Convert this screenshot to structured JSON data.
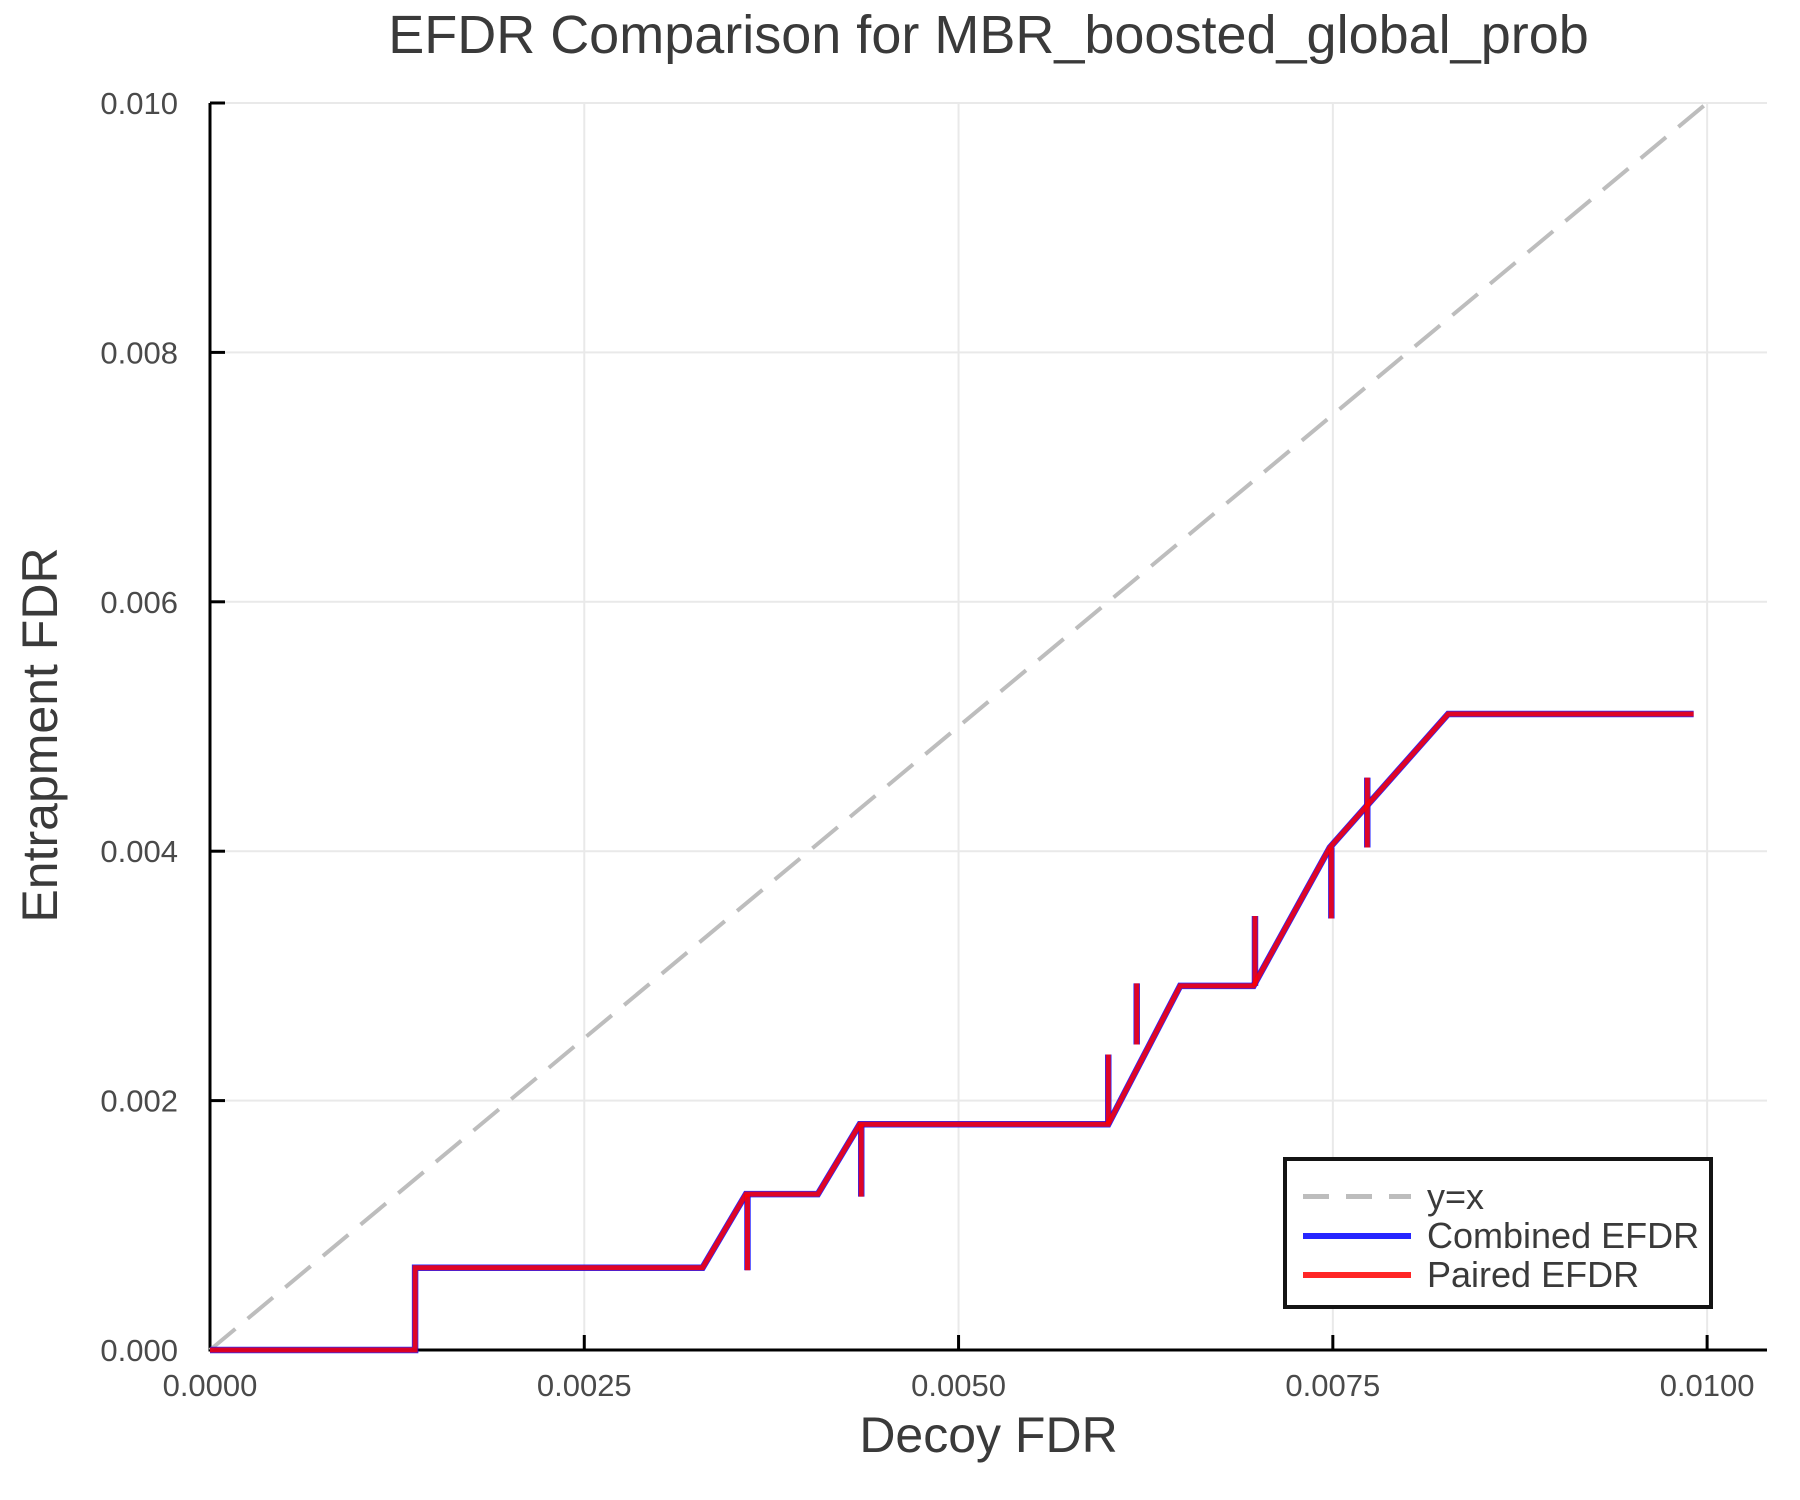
{
  "chart_data": {
    "type": "line",
    "title": "EFDR Comparison for MBR_boosted_global_prob",
    "xlabel": "Decoy FDR",
    "ylabel": "Entrapment FDR",
    "xlim": [
      0,
      0.0104
    ],
    "ylim": [
      0,
      0.01
    ],
    "grid": true,
    "grid_color": "#e9e9e9",
    "axis_color": "#000000",
    "tick_label_color": "#4a4a4a",
    "text_color": "#3a3a3a",
    "x_ticks": [
      {
        "value": 0.0,
        "label": "0.0000"
      },
      {
        "value": 0.0025,
        "label": "0.0025"
      },
      {
        "value": 0.005,
        "label": "0.0050"
      },
      {
        "value": 0.0075,
        "label": "0.0075"
      },
      {
        "value": 0.01,
        "label": "0.0100"
      }
    ],
    "y_ticks": [
      {
        "value": 0.0,
        "label": "0.000"
      },
      {
        "value": 0.002,
        "label": "0.002"
      },
      {
        "value": 0.004,
        "label": "0.004"
      },
      {
        "value": 0.006,
        "label": "0.006"
      },
      {
        "value": 0.008,
        "label": "0.008"
      },
      {
        "value": 0.01,
        "label": "0.010"
      }
    ],
    "legend": {
      "position": "lower right",
      "entries": [
        {
          "label": "y=x",
          "color": "#bdbdbd",
          "dash": true
        },
        {
          "label": "Combined EFDR",
          "color": "#0000ff",
          "dash": false
        },
        {
          "label": "Paired EFDR",
          "color": "#ff0000",
          "dash": false
        }
      ]
    },
    "series": [
      {
        "name": "y=x",
        "color": "#bdbdbd",
        "width": 4,
        "opacity": 1,
        "dash": [
          33,
          16
        ],
        "points": [
          [
            0.0,
            0.0
          ],
          [
            0.01,
            0.01
          ]
        ]
      },
      {
        "name": "Combined EFDR",
        "color": "#0000ff",
        "width": 6.5,
        "opacity": 0.85,
        "points": [
          [
            0.0,
            0.0
          ],
          [
            0.00137,
            0.0
          ],
          [
            0.00137,
            0.00066
          ],
          [
            0.00329,
            0.00066
          ],
          [
            0.00358,
            0.00125
          ],
          [
            0.00406,
            0.00125
          ],
          [
            0.00434,
            0.00181
          ],
          [
            0.006,
            0.00181
          ],
          [
            0.00648,
            0.00292
          ],
          [
            0.00697,
            0.00292
          ],
          [
            0.00748,
            0.00403
          ],
          [
            0.00827,
            0.0051
          ],
          [
            0.00991,
            0.0051
          ]
        ],
        "spikes": [
          [
            0.00359,
            0.00125,
            0.00064
          ],
          [
            0.00435,
            0.00181,
            0.00123
          ],
          [
            0.006,
            0.00181,
            0.00237
          ],
          [
            0.00619,
            0.00245,
            0.00294
          ],
          [
            0.00698,
            0.00292,
            0.00348
          ],
          [
            0.00749,
            0.00403,
            0.00346
          ],
          [
            0.00773,
            0.00403,
            0.00459
          ]
        ]
      },
      {
        "name": "Paired EFDR",
        "color": "#ff0000",
        "width": 5,
        "opacity": 0.85,
        "points": [
          [
            0.0,
            0.0
          ],
          [
            0.00137,
            0.0
          ],
          [
            0.00137,
            0.00066
          ],
          [
            0.00329,
            0.00066
          ],
          [
            0.00358,
            0.00125
          ],
          [
            0.00406,
            0.00125
          ],
          [
            0.00434,
            0.00181
          ],
          [
            0.006,
            0.00181
          ],
          [
            0.00648,
            0.00292
          ],
          [
            0.00697,
            0.00292
          ],
          [
            0.00748,
            0.00403
          ],
          [
            0.00827,
            0.0051
          ],
          [
            0.00991,
            0.0051
          ]
        ],
        "spikes": [
          [
            0.00359,
            0.00125,
            0.00064
          ],
          [
            0.00435,
            0.00181,
            0.00123
          ],
          [
            0.006,
            0.00181,
            0.00237
          ],
          [
            0.00619,
            0.00245,
            0.00294
          ],
          [
            0.00698,
            0.00292,
            0.00348
          ],
          [
            0.00749,
            0.00403,
            0.00346
          ],
          [
            0.00773,
            0.00403,
            0.00459
          ]
        ]
      }
    ]
  }
}
